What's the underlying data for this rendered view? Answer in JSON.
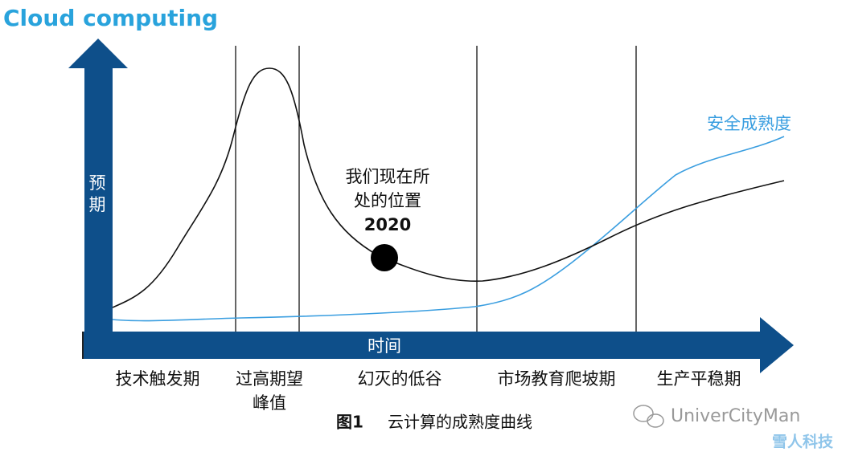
{
  "header": {
    "title": "Cloud computing"
  },
  "axes": {
    "y_label": "预期",
    "x_label": "时间"
  },
  "phases": [
    {
      "lines": [
        "技术触发期"
      ]
    },
    {
      "lines": [
        "过高期望",
        "峰值"
      ]
    },
    {
      "lines": [
        "幻灭的低谷"
      ]
    },
    {
      "lines": [
        "市场教育爬坡期"
      ]
    },
    {
      "lines": [
        "生产平稳期"
      ]
    }
  ],
  "annotation": {
    "lines": [
      "我们现在所",
      "处的位置"
    ],
    "year": "2020"
  },
  "curve_label": "安全成熟度",
  "caption": {
    "figure": "图1",
    "text": "云计算的成熟度曲线"
  },
  "watermark": {
    "account": "UniverCityMan",
    "brand": "雪人科技"
  }
}
